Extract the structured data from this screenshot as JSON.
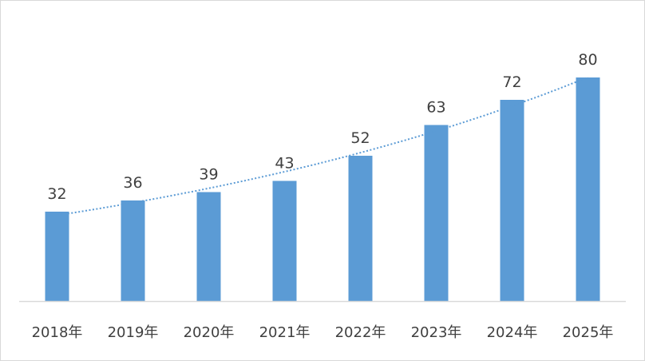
{
  "colors": {
    "bar": "#5b9bd5",
    "trendline": "#5b9bd5",
    "axis": "#d9d9d9",
    "text": "#404040"
  },
  "chart_data": {
    "type": "bar",
    "categories": [
      "2018年",
      "2019年",
      "2020年",
      "2021年",
      "2022年",
      "2023年",
      "2024年",
      "2025年"
    ],
    "values": [
      32,
      36,
      39,
      43,
      52,
      63,
      72,
      80
    ],
    "data_labels": [
      "32",
      "36",
      "39",
      "43",
      "52",
      "63",
      "72",
      "80"
    ],
    "title": "",
    "xlabel": "",
    "ylabel": "",
    "ylim": [
      0,
      92
    ],
    "y_axis_visible": false,
    "grid": false,
    "legend": "none",
    "trendline": {
      "type": "exponential",
      "style": "dotted"
    }
  }
}
